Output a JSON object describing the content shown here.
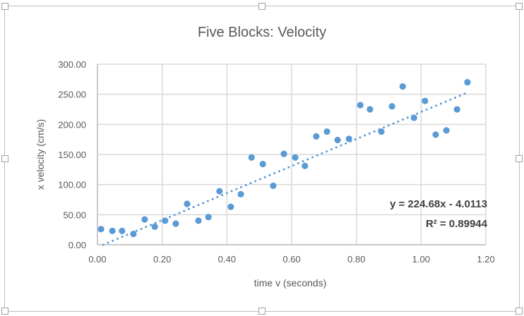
{
  "chart_data": {
    "type": "scatter",
    "title": "Five Blocks: Velocity",
    "xlabel": "time v (seconds)",
    "ylabel": "x velocity (cm/s)",
    "xlim": [
      0,
      1.2
    ],
    "ylim": [
      0,
      300
    ],
    "xticks": [
      "0.00",
      "0.20",
      "0.40",
      "0.60",
      "0.80",
      "1.00",
      "1.20"
    ],
    "yticks": [
      "0.00",
      "50.00",
      "100.00",
      "150.00",
      "200.00",
      "250.00",
      "300.00"
    ],
    "grid": true,
    "legend": "none",
    "marker_color": "#5b9bd5",
    "points": [
      [
        0.011,
        26
      ],
      [
        0.046,
        23
      ],
      [
        0.076,
        23
      ],
      [
        0.111,
        18
      ],
      [
        0.146,
        42
      ],
      [
        0.177,
        30
      ],
      [
        0.209,
        40
      ],
      [
        0.242,
        35
      ],
      [
        0.277,
        68
      ],
      [
        0.312,
        40
      ],
      [
        0.343,
        46
      ],
      [
        0.377,
        89
      ],
      [
        0.412,
        63
      ],
      [
        0.443,
        84
      ],
      [
        0.476,
        145
      ],
      [
        0.511,
        134
      ],
      [
        0.543,
        98
      ],
      [
        0.576,
        151
      ],
      [
        0.611,
        145
      ],
      [
        0.641,
        131
      ],
      [
        0.676,
        180
      ],
      [
        0.709,
        188
      ],
      [
        0.742,
        174
      ],
      [
        0.777,
        176
      ],
      [
        0.812,
        232
      ],
      [
        0.842,
        225
      ],
      [
        0.877,
        188
      ],
      [
        0.91,
        230
      ],
      [
        0.943,
        263
      ],
      [
        0.978,
        211
      ],
      [
        1.012,
        239
      ],
      [
        1.045,
        183
      ],
      [
        1.078,
        190
      ],
      [
        1.111,
        225
      ],
      [
        1.143,
        270
      ]
    ],
    "trendline": {
      "type": "linear",
      "slope": 224.68,
      "intercept": -4.0113,
      "style": "dotted",
      "equation": "y = 224.68x - 4.0113",
      "r_squared": "R² = 0.89944"
    }
  }
}
